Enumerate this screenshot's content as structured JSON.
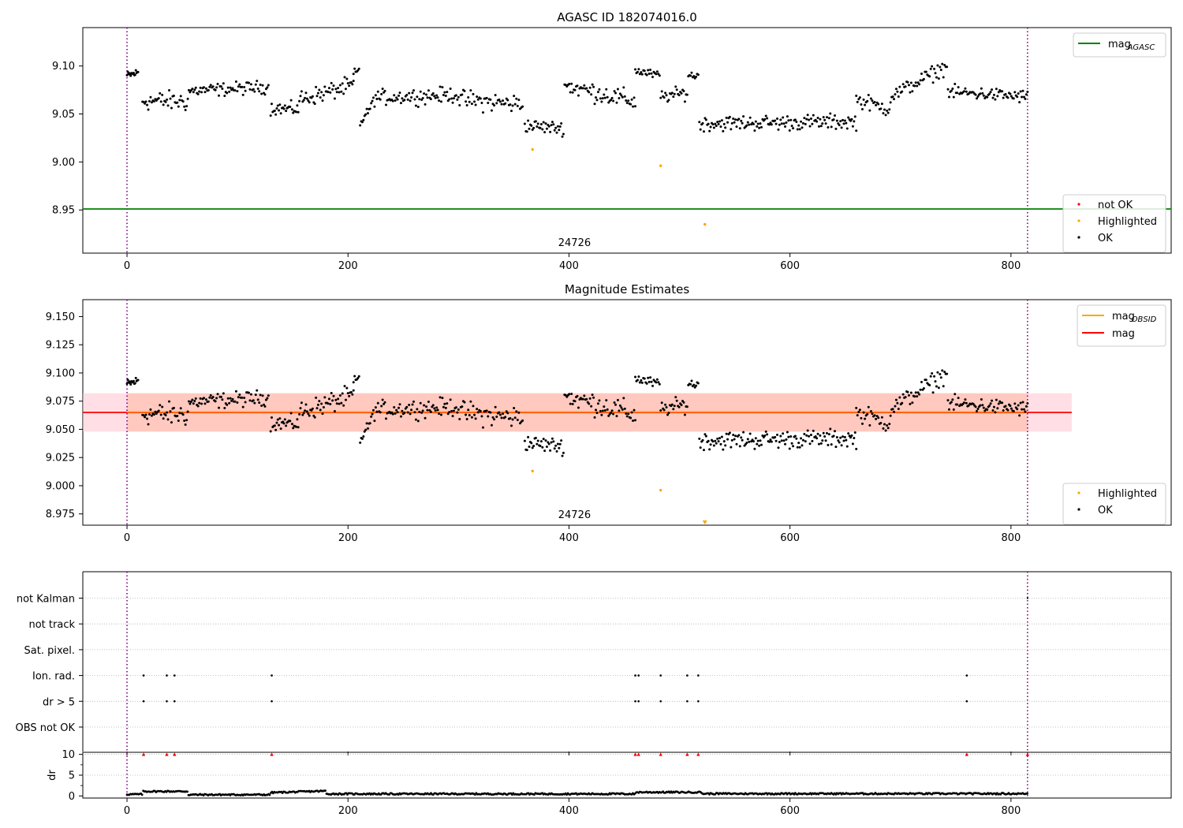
{
  "chart_data": [
    {
      "id": "top",
      "type": "scatter",
      "title": "AGASC ID 182074016.0",
      "xlim": [
        -40,
        945
      ],
      "ylim": [
        8.905,
        9.14
      ],
      "xticks": [
        0,
        200,
        400,
        600,
        800
      ],
      "yticks": [
        8.95,
        9.0,
        9.05,
        9.1
      ],
      "ytick_labels": [
        "8.95",
        "9.00",
        "9.05",
        "9.10"
      ],
      "obsid_label": "24726",
      "obsid_label_x": 405,
      "vlines": [
        0,
        815
      ],
      "hline": {
        "name": "mag_AGASC",
        "y": 8.951,
        "color": "#008000"
      },
      "highlighted": [
        {
          "x": 367,
          "y": 9.013
        },
        {
          "x": 483,
          "y": 8.996
        },
        {
          "x": 523,
          "y": 8.935
        }
      ],
      "legend_upper": {
        "placement": "upper-right",
        "entries": [
          {
            "base": "mag",
            "sub": "AGASC",
            "color": "#008000"
          }
        ]
      },
      "legend_lower": {
        "placement": "lower-right",
        "entries": [
          {
            "label": "not OK",
            "color": "#ff0000"
          },
          {
            "label": "Highlighted",
            "color": "#ffa500"
          },
          {
            "label": "OK",
            "color": "#000000"
          }
        ]
      }
    },
    {
      "id": "middle",
      "type": "scatter",
      "title": "Magnitude Estimates",
      "xlim": [
        -40,
        945
      ],
      "ylim": [
        8.965,
        9.165
      ],
      "xticks": [
        0,
        200,
        400,
        600,
        800
      ],
      "yticks": [
        8.975,
        9.0,
        9.025,
        9.05,
        9.075,
        9.1,
        9.125,
        9.15
      ],
      "ytick_labels": [
        "8.975",
        "9.000",
        "9.025",
        "9.050",
        "9.075",
        "9.100",
        "9.125",
        "9.150"
      ],
      "obsid_label": "24726",
      "obsid_label_x": 405,
      "vlines": [
        0,
        815
      ],
      "mag_line": {
        "name": "mag",
        "y": 9.065,
        "x": [
          -40,
          855
        ],
        "color": "#ff0000"
      },
      "mag_obsid_line": {
        "name": "mag_OBSID",
        "y": 9.0655,
        "x": [
          0,
          815
        ],
        "color": "#ffa500"
      },
      "mag_band": {
        "y": [
          9.048,
          9.082
        ],
        "x": [
          -40,
          855
        ]
      },
      "obsid_band": {
        "y": [
          9.048,
          9.082
        ],
        "x": [
          0,
          815
        ]
      },
      "highlighted": [
        {
          "x": 367,
          "y": 9.013
        },
        {
          "x": 483,
          "y": 8.996
        }
      ],
      "offscale_marker": {
        "x": 523,
        "y": 8.9665,
        "color": "#ffa500"
      },
      "legend_upper": {
        "placement": "upper-right",
        "entries": [
          {
            "base": "mag",
            "sub": "OBSID",
            "color": "#ffa500"
          },
          {
            "base": "mag",
            "sub": "",
            "color": "#ff0000"
          }
        ]
      },
      "legend_lower": {
        "placement": "lower-right",
        "entries": [
          {
            "label": "Highlighted",
            "color": "#ffa500"
          },
          {
            "label": "OK",
            "color": "#000000"
          }
        ]
      }
    },
    {
      "id": "flags",
      "type": "scatter",
      "xlim": [
        -40,
        945
      ],
      "categories": [
        "not Kalman",
        "not track",
        "Sat. pixel.",
        "Ion. rad.",
        "dr > 5",
        "OBS not OK"
      ],
      "vlines": [
        0,
        815
      ],
      "ion_rad_x": [
        15,
        36,
        43,
        131,
        460,
        463,
        483,
        507,
        517,
        760
      ],
      "dr_gt5_x": [
        15,
        36,
        43,
        131,
        460,
        463,
        483,
        507,
        517,
        760
      ],
      "not_kalman_x": [
        815
      ]
    },
    {
      "id": "dr",
      "type": "line",
      "ylabel": "dr",
      "xlim": [
        -40,
        945
      ],
      "ylim": [
        -0.5,
        10.5
      ],
      "yticks": [
        0,
        5,
        10
      ],
      "ytick_labels": [
        "0",
        "5",
        "10"
      ],
      "xticks": [
        0,
        200,
        400,
        600,
        800
      ],
      "xtick_labels": [
        "0",
        "200",
        "400",
        "600",
        "800"
      ],
      "vlines": [
        0,
        815
      ],
      "clipped_x": [
        15,
        36,
        43,
        131,
        460,
        463,
        483,
        507,
        517,
        760,
        815
      ]
    }
  ],
  "series_segments": [
    {
      "x0": 0,
      "x1": 10,
      "a": 9.09,
      "b": 9.093,
      "n": 16,
      "noise": 0.004
    },
    {
      "x0": 14,
      "x1": 55,
      "a": 9.064,
      "b": 9.063,
      "n": 40,
      "noise": 0.009
    },
    {
      "x0": 56,
      "x1": 128,
      "a": 9.074,
      "b": 9.078,
      "n": 70,
      "noise": 0.006
    },
    {
      "x0": 130,
      "x1": 155,
      "a": 9.056,
      "b": 9.055,
      "n": 28,
      "noise": 0.006
    },
    {
      "x0": 156,
      "x1": 205,
      "a": 9.065,
      "b": 9.08,
      "n": 50,
      "noise": 0.008
    },
    {
      "x0": 205,
      "x1": 210,
      "a": 9.092,
      "b": 9.095,
      "n": 6,
      "noise": 0.004
    },
    {
      "x0": 211,
      "x1": 222,
      "a": 9.04,
      "b": 9.06,
      "n": 12,
      "noise": 0.004
    },
    {
      "x0": 223,
      "x1": 300,
      "a": 9.067,
      "b": 9.07,
      "n": 75,
      "noise": 0.007
    },
    {
      "x0": 301,
      "x1": 358,
      "a": 9.065,
      "b": 9.06,
      "n": 52,
      "noise": 0.009
    },
    {
      "x0": 360,
      "x1": 395,
      "a": 9.038,
      "b": 9.035,
      "n": 36,
      "noise": 0.006
    },
    {
      "x0": 396,
      "x1": 460,
      "a": 9.08,
      "b": 9.063,
      "n": 62,
      "noise": 0.009
    },
    {
      "x0": 460,
      "x1": 482,
      "a": 9.095,
      "b": 9.09,
      "n": 22,
      "noise": 0.004
    },
    {
      "x0": 483,
      "x1": 507,
      "a": 9.068,
      "b": 9.072,
      "n": 24,
      "noise": 0.006
    },
    {
      "x0": 508,
      "x1": 517,
      "a": 9.09,
      "b": 9.09,
      "n": 10,
      "noise": 0.004
    },
    {
      "x0": 518,
      "x1": 660,
      "a": 9.04,
      "b": 9.042,
      "n": 140,
      "noise": 0.007
    },
    {
      "x0": 660,
      "x1": 690,
      "a": 9.065,
      "b": 9.055,
      "n": 28,
      "noise": 0.007
    },
    {
      "x0": 691,
      "x1": 742,
      "a": 9.068,
      "b": 9.1,
      "n": 50,
      "noise": 0.007
    },
    {
      "x0": 743,
      "x1": 815,
      "a": 9.073,
      "b": 9.068,
      "n": 70,
      "noise": 0.006
    }
  ]
}
